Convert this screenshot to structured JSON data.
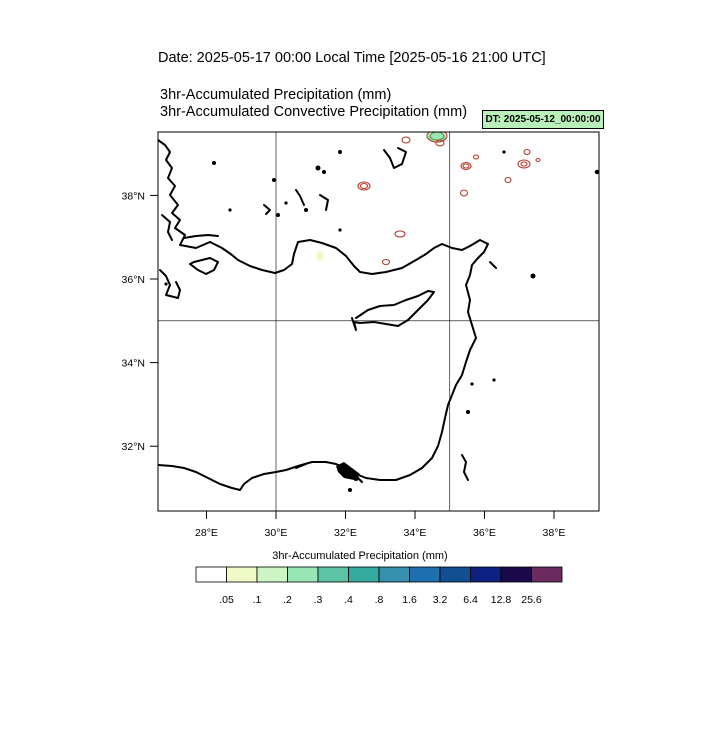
{
  "header": {
    "date_line": "Date: 2025-05-17  00:00 Local Time [2025-05-16  21:00 UTC]",
    "var1": "3hr-Accumulated Precipitation   (mm)",
    "var2": "3hr-Accumulated Convective Precipitation   (mm)",
    "dt_badge": "DT: 2025-05-12_00:00:00"
  },
  "map": {
    "lat_labels": [
      "38°N",
      "36°N",
      "34°N",
      "32°N"
    ],
    "lon_labels": [
      "28°E",
      "30°E",
      "32°E",
      "34°E",
      "36°E",
      "38°E"
    ],
    "lat_values": [
      38,
      36,
      34,
      32
    ],
    "lon_values": [
      28,
      30,
      32,
      34,
      36,
      38
    ],
    "gridlines": {
      "lat": [
        35
      ],
      "lon": [
        30,
        35
      ]
    },
    "contour_color": "#b5392b"
  },
  "colorbar": {
    "title": "3hr-Accumulated Precipitation   (mm)",
    "colors": [
      "#ffffff",
      "#effac6",
      "#cdf5c6",
      "#99e7b6",
      "#5cc4a4",
      "#36a99f",
      "#3490ac",
      "#1f6fae",
      "#124e92",
      "#0f2180",
      "#1b0a4b",
      "#6a2c5e"
    ],
    "labels": [
      ".05",
      ".1",
      ".2",
      ".3",
      ".4",
      ".8",
      "1.6",
      "3.2",
      "6.4",
      "12.8",
      "25.6"
    ]
  }
}
